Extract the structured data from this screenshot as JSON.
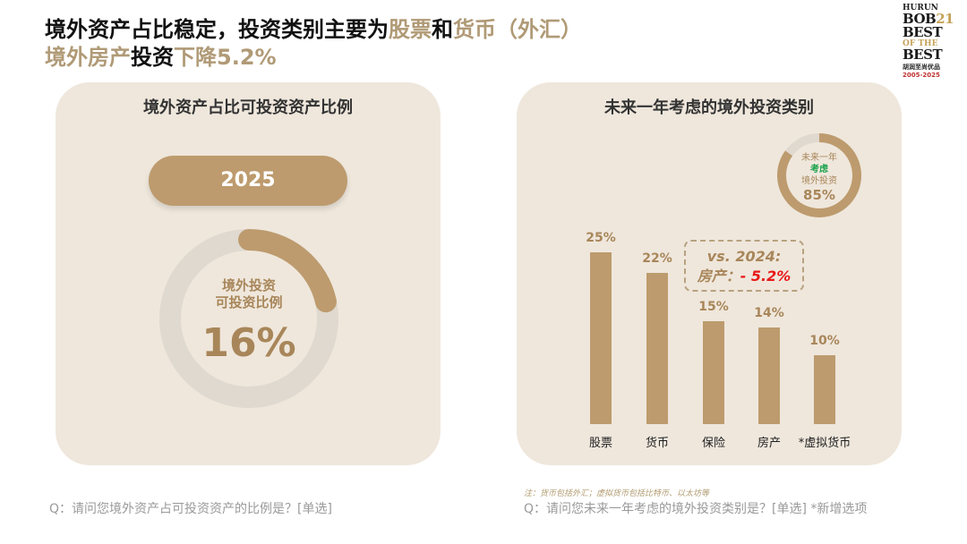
{
  "header": {
    "title_line1": [
      "境外资产占比稳定，投资类别主要为",
      "股票",
      "和",
      "货币（外汇）"
    ],
    "title_line2": [
      "境外房产",
      "投资",
      "下降5.2%"
    ]
  },
  "logo": {
    "line1": "HURUN",
    "line2a": "BOB",
    "line2b": "21",
    "line3": "BEST",
    "line4": "OF THE",
    "line5": "BEST",
    "line6": "胡润至尚优品",
    "line7": "2005-2025"
  },
  "left_panel": {
    "title": "境外资产占比可投资资产比例",
    "year": "2025",
    "donut": {
      "label_line1": "境外投资",
      "label_line2": "可投资比例",
      "value_text": "16%",
      "value": 16
    }
  },
  "right_panel": {
    "title": "未来一年考虑的境外投资类别",
    "mini_donut": {
      "line1": "未来一年",
      "line2": "考虑",
      "line3": "境外投资",
      "value_text": "85%",
      "value": 85
    },
    "comparison": {
      "line1": "vs. 2024:",
      "label": "房产：",
      "change": "- 5.2%"
    }
  },
  "chart_data": {
    "type": "bar",
    "title": "未来一年考虑的境外投资类别",
    "categories": [
      "股票",
      "货币",
      "保险",
      "房产",
      "*虚拟货币"
    ],
    "values": [
      25,
      22,
      15,
      14,
      10
    ],
    "value_labels": [
      "25%",
      "22%",
      "15%",
      "14%",
      "10%"
    ],
    "ylim": [
      0,
      30
    ],
    "unit": "%"
  },
  "footer": {
    "left_question": "Q：请问您境外资产占可投资资产的比例是？[单选]",
    "right_note": "注：货币包括外汇；虚拟货币包括比特币、以太坊等",
    "right_question": "Q：请问您未来一年考虑的境外投资类别是？[单选] *新增选项"
  },
  "colors": {
    "accent": "#bd9b6e",
    "panel": "#efe7dc",
    "track": "#e0d9cf",
    "negative": "#e81818"
  }
}
